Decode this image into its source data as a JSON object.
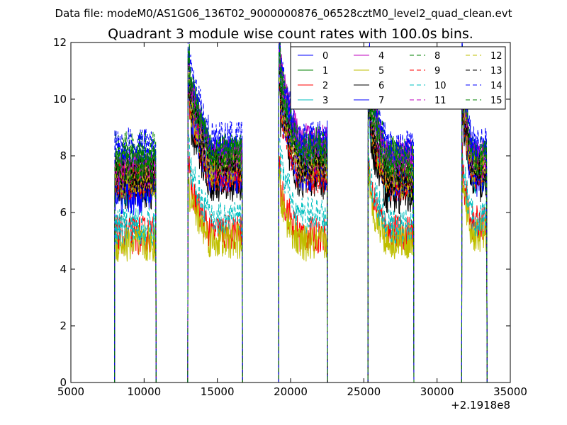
{
  "suptitle": "Data file: modeM0/AS1G06_136T02_9000000876_06528cztM0_level2_quad_clean.evt",
  "chart_data": {
    "type": "line",
    "title": "Quadrant 3 module wise count rates with 100.0s bins.",
    "xlabel": "",
    "ylabel": "",
    "xlim": [
      5000,
      35000
    ],
    "ylim": [
      0,
      12
    ],
    "x_ticks": [
      5000,
      10000,
      15000,
      20000,
      25000,
      30000,
      35000
    ],
    "x_tick_labels": [
      "5000",
      "10000",
      "15000",
      "20000",
      "25000",
      "30000",
      "35000"
    ],
    "y_ticks": [
      0,
      2,
      4,
      6,
      8,
      10,
      12
    ],
    "y_tick_labels": [
      "0",
      "2",
      "4",
      "6",
      "8",
      "10",
      "12"
    ],
    "x_offset_label": "+2.1918e8",
    "grid": false,
    "legend_placement": "top-right",
    "legend_columns": 4,
    "bin_width_s": 100,
    "orbits": [
      {
        "start": 8000,
        "end": 10800
      },
      {
        "start": 13000,
        "end": 16700
      },
      {
        "start": 19200,
        "end": 22500
      },
      {
        "start": 25300,
        "end": 28400
      },
      {
        "start": 31700,
        "end": 33400
      }
    ],
    "series": [
      {
        "name": "0",
        "color": "#0000ff",
        "dash": false,
        "levels": [
          7.0,
          8.1,
          8.1,
          7.0,
          7.4
        ]
      },
      {
        "name": "1",
        "color": "#008000",
        "dash": false,
        "levels": [
          7.6,
          8.2,
          8.4,
          7.9,
          8.0
        ]
      },
      {
        "name": "2",
        "color": "#ff0000",
        "dash": false,
        "levels": [
          5.2,
          5.3,
          5.2,
          5.3,
          5.6
        ]
      },
      {
        "name": "3",
        "color": "#00bfbf",
        "dash": false,
        "levels": [
          6.9,
          7.5,
          7.9,
          7.0,
          7.3
        ]
      },
      {
        "name": "4",
        "color": "#bf00bf",
        "dash": false,
        "levels": [
          7.5,
          8.0,
          8.5,
          8.0,
          7.9
        ]
      },
      {
        "name": "5",
        "color": "#bfbf00",
        "dash": false,
        "levels": [
          4.9,
          5.0,
          4.9,
          5.0,
          5.2
        ]
      },
      {
        "name": "6",
        "color": "#000000",
        "dash": false,
        "levels": [
          6.8,
          7.0,
          7.1,
          6.6,
          7.0
        ]
      },
      {
        "name": "7",
        "color": "#0000ff",
        "dash": false,
        "levels": [
          6.6,
          7.3,
          7.4,
          7.2,
          7.2
        ]
      },
      {
        "name": "8",
        "color": "#008000",
        "dash": true,
        "levels": [
          8.2,
          8.0,
          8.3,
          8.1,
          8.1
        ]
      },
      {
        "name": "9",
        "color": "#ff0000",
        "dash": true,
        "levels": [
          7.1,
          7.3,
          7.3,
          7.0,
          7.4
        ]
      },
      {
        "name": "10",
        "color": "#00bfbf",
        "dash": true,
        "levels": [
          5.5,
          5.8,
          5.9,
          5.5,
          5.8
        ]
      },
      {
        "name": "11",
        "color": "#bf00bf",
        "dash": true,
        "levels": [
          7.4,
          7.8,
          8.0,
          7.6,
          7.8
        ]
      },
      {
        "name": "12",
        "color": "#bfbf00",
        "dash": true,
        "levels": [
          7.2,
          7.5,
          7.6,
          7.1,
          7.5
        ]
      },
      {
        "name": "13",
        "color": "#000000",
        "dash": true,
        "levels": [
          7.3,
          7.7,
          7.7,
          7.2,
          7.6
        ]
      },
      {
        "name": "14",
        "color": "#0000ff",
        "dash": true,
        "levels": [
          8.3,
          8.6,
          8.6,
          8.3,
          8.4
        ]
      },
      {
        "name": "15",
        "color": "#008000",
        "dash": true,
        "levels": [
          7.7,
          8.1,
          8.1,
          7.7,
          7.9
        ]
      }
    ]
  }
}
